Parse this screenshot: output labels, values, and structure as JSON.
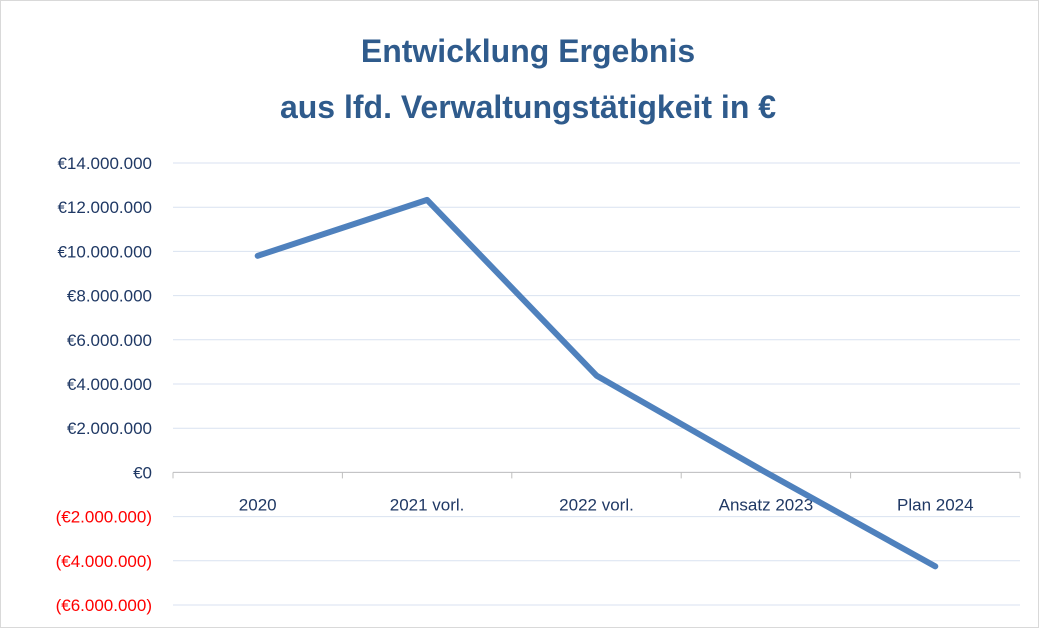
{
  "chart_data": {
    "type": "line",
    "title": [
      "Entwicklung Ergebnis",
      "aus lfd. Verwaltungstätigkeit in €"
    ],
    "categories": [
      "2020",
      "2021 vorl.",
      "2022 vorl.",
      "Ansatz 2023",
      "Plan 2024"
    ],
    "series": [
      {
        "name": "Ergebnis",
        "color": "#4f81bd",
        "values": [
          9800000,
          12330000,
          4380000,
          0,
          -4250000
        ]
      }
    ],
    "ylim": [
      -6000000,
      14000000
    ],
    "yticks": [
      {
        "value": -6000000,
        "label": "(€6.000.000)"
      },
      {
        "value": -4000000,
        "label": "(€4.000.000)"
      },
      {
        "value": -2000000,
        "label": "(€2.000.000)"
      },
      {
        "value": 0,
        "label": "€0"
      },
      {
        "value": 2000000,
        "label": "€2.000.000"
      },
      {
        "value": 4000000,
        "label": "€4.000.000"
      },
      {
        "value": 6000000,
        "label": "€6.000.000"
      },
      {
        "value": 8000000,
        "label": "€8.000.000"
      },
      {
        "value": 10000000,
        "label": "€10.000.000"
      },
      {
        "value": 12000000,
        "label": "€12.000.000"
      },
      {
        "value": 14000000,
        "label": "€14.000.000"
      }
    ],
    "grid": true,
    "tick_color": "#1f3864",
    "negative_tick_color": "#ff0000"
  }
}
